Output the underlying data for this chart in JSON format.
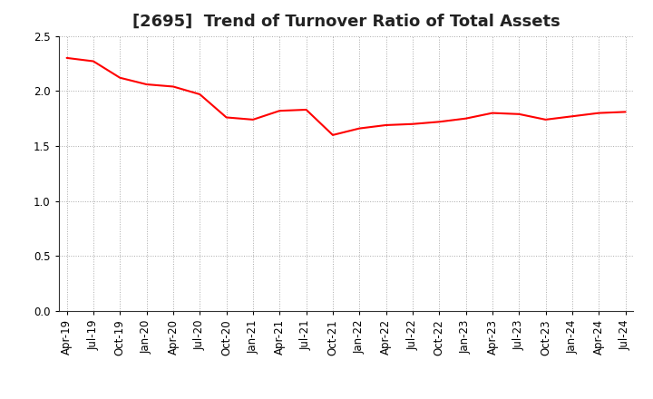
{
  "title": "[2695]  Trend of Turnover Ratio of Total Assets",
  "line_color": "#FF0000",
  "line_width": 1.5,
  "background_color": "#FFFFFF",
  "grid_color": "#AAAAAA",
  "ylim": [
    0.0,
    2.5
  ],
  "yticks": [
    0.0,
    0.5,
    1.0,
    1.5,
    2.0,
    2.5
  ],
  "values": [
    2.3,
    2.27,
    2.12,
    2.06,
    2.04,
    1.97,
    1.76,
    1.74,
    1.82,
    1.83,
    1.6,
    1.66,
    1.69,
    1.7,
    1.72,
    1.75,
    1.8,
    1.79,
    1.74,
    1.77,
    1.8,
    1.81
  ],
  "xtick_labels": [
    "Apr-19",
    "Jul-19",
    "Oct-19",
    "Jan-20",
    "Apr-20",
    "Jul-20",
    "Oct-20",
    "Jan-21",
    "Apr-21",
    "Jul-21",
    "Oct-21",
    "Jan-22",
    "Apr-22",
    "Jul-22",
    "Oct-22",
    "Jan-23",
    "Apr-23",
    "Jul-23",
    "Oct-23",
    "Jan-24",
    "Apr-24",
    "Jul-24"
  ],
  "title_fontsize": 13,
  "tick_fontsize": 8.5,
  "fig_width": 7.2,
  "fig_height": 4.4,
  "dpi": 100
}
